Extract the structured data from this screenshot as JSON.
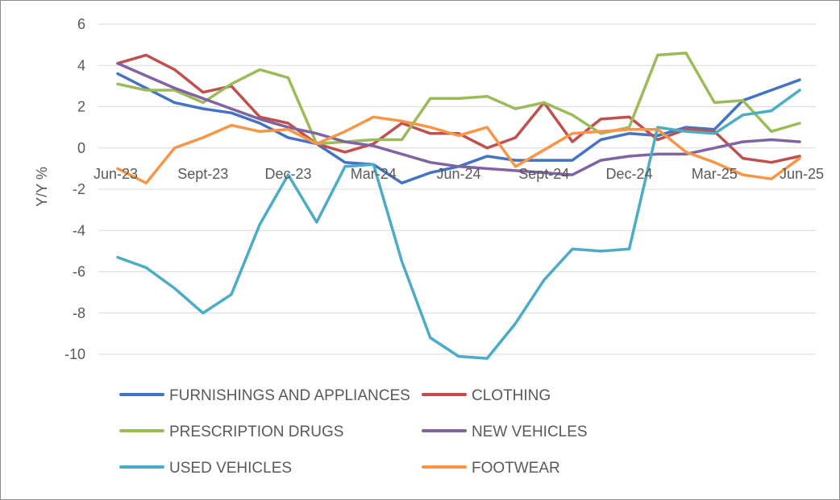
{
  "chart_data": {
    "type": "line",
    "title": "",
    "xlabel": "",
    "ylabel": "Y/Y %",
    "ylim": [
      -10,
      6
    ],
    "yticks": [
      6,
      4,
      2,
      0,
      -2,
      -4,
      -6,
      -8,
      -10
    ],
    "x": [
      "Jun-23",
      "Jul-23",
      "Aug-23",
      "Sept-23",
      "Oct-23",
      "Nov-23",
      "Dec-23",
      "Jan-24",
      "Feb-24",
      "Mar-24",
      "Apr-24",
      "May-24",
      "Jun-24",
      "Jul-24",
      "Aug-24",
      "Sept-24",
      "Oct-24",
      "Nov-24",
      "Dec-24",
      "Jan-25",
      "Feb-25",
      "Mar-25",
      "Apr-25",
      "May-25",
      "Jun-25"
    ],
    "xtick_labels": [
      "Jun-23",
      "Sept-23",
      "Dec-23",
      "Mar-24",
      "Jun-24",
      "Sept-24",
      "Dec-24",
      "Mar-25",
      "Jun-25"
    ],
    "xtick_index": [
      0,
      3,
      6,
      9,
      12,
      15,
      18,
      21,
      24
    ],
    "grid": true,
    "legend_placement": "bottom",
    "series": [
      {
        "name": "FURNISHINGS AND APPLIANCES",
        "color": "#4472C4",
        "values": [
          3.6,
          2.9,
          2.2,
          1.9,
          1.7,
          1.2,
          0.5,
          0.2,
          -0.7,
          -0.8,
          -1.7,
          -1.2,
          -0.9,
          -0.4,
          -0.6,
          -0.6,
          -0.6,
          0.4,
          0.7,
          0.6,
          1.0,
          0.9,
          2.3,
          2.8,
          3.3
        ]
      },
      {
        "name": "CLOTHING",
        "color": "#C0504D",
        "values": [
          4.1,
          4.5,
          3.8,
          2.7,
          3.0,
          1.5,
          1.2,
          0.2,
          -0.2,
          0.2,
          1.2,
          0.7,
          0.7,
          0.0,
          0.5,
          2.2,
          0.3,
          1.4,
          1.5,
          0.4,
          0.9,
          0.8,
          -0.5,
          -0.7,
          -0.4
        ]
      },
      {
        "name": "PRESCRIPTION DRUGS",
        "color": "#9BBB59",
        "values": [
          3.1,
          2.8,
          2.8,
          2.2,
          3.1,
          3.8,
          3.4,
          0.2,
          0.3,
          0.4,
          0.4,
          2.4,
          2.4,
          2.5,
          1.9,
          2.2,
          1.6,
          0.7,
          1.0,
          4.5,
          4.6,
          2.2,
          2.3,
          0.8,
          1.2
        ]
      },
      {
        "name": "NEW VEHICLES",
        "color": "#8064A2",
        "values": [
          4.1,
          3.5,
          2.9,
          2.4,
          1.9,
          1.4,
          1.0,
          0.7,
          0.3,
          0.1,
          -0.3,
          -0.7,
          -0.9,
          -1.0,
          -1.1,
          -1.2,
          -1.3,
          -0.6,
          -0.4,
          -0.3,
          -0.3,
          0.0,
          0.3,
          0.4,
          0.3
        ]
      },
      {
        "name": "USED VEHICLES",
        "color": "#4BACC6",
        "values": [
          -5.3,
          -5.8,
          -6.8,
          -8.0,
          -7.1,
          -3.7,
          -1.3,
          -3.6,
          -0.9,
          -0.8,
          -5.5,
          -9.2,
          -10.1,
          -10.2,
          -8.5,
          -6.4,
          -4.9,
          -5.0,
          -4.9,
          1.0,
          0.8,
          0.7,
          1.6,
          1.8,
          2.8
        ]
      },
      {
        "name": "FOOTWEAR",
        "color": "#F79646",
        "values": [
          -1.0,
          -1.7,
          0.0,
          0.5,
          1.1,
          0.8,
          0.9,
          0.2,
          0.8,
          1.5,
          1.3,
          1.0,
          0.6,
          1.0,
          -0.9,
          -0.1,
          0.7,
          0.8,
          0.9,
          0.9,
          -0.2,
          -0.7,
          -1.3,
          -1.5,
          -0.5
        ]
      }
    ]
  }
}
